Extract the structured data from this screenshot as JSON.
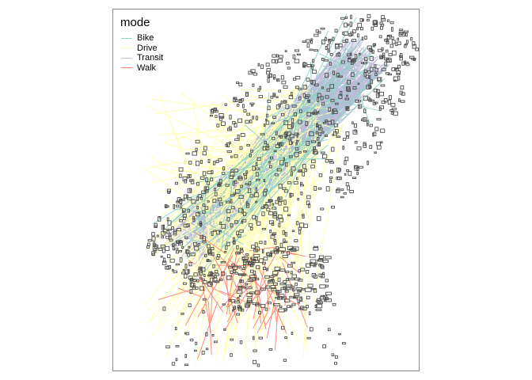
{
  "legend": {
    "title": "mode",
    "items": [
      {
        "label": "Bike",
        "color": "#8dd3c7"
      },
      {
        "label": "Drive",
        "color": "#ffffb3"
      },
      {
        "label": "Transit",
        "color": "#bebada"
      },
      {
        "label": "Walk",
        "color": "#fb8072"
      }
    ]
  },
  "colors": {
    "buildings": "#4d4d4d",
    "frame": "#8a8a8a",
    "background": "#ffffff"
  }
}
